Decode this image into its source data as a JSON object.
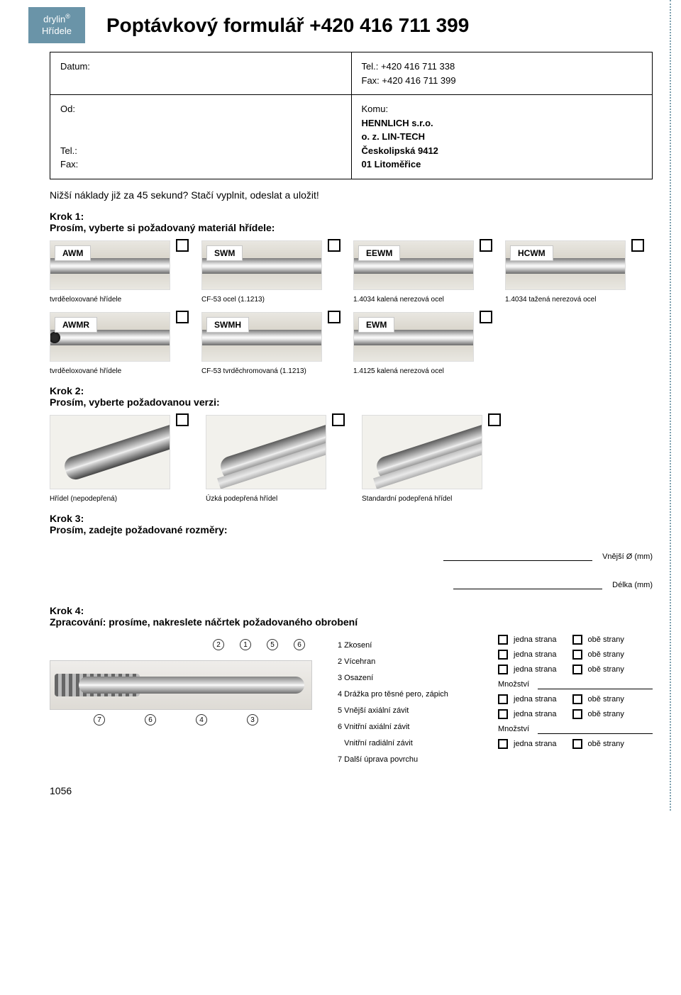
{
  "colors": {
    "brand_tab_bg": "#6a94a8",
    "brand_tab_text": "#ffffff",
    "page_bg": "#ffffff",
    "text": "#000000",
    "dotline": "#7c9fae",
    "thumb_bg_start": "#e9e7e1",
    "thumb_bg_end": "#d4d0c5"
  },
  "fonts": {
    "title_pt": 28,
    "body_pt": 13,
    "caption_pt": 10
  },
  "brand": {
    "line1": "drylin",
    "registered": "®",
    "line2": "Hřídele"
  },
  "title": "Poptávkový formulář +420 416 711 399",
  "contact": {
    "top_left_label": "Datum:",
    "top_right": {
      "tel": "Tel.: +420 416 711 338",
      "fax": "Fax: +420 416 711 399"
    },
    "bottom_left": {
      "od": "Od:",
      "tel": "Tel.:",
      "fax": "Fax:"
    },
    "bottom_right": {
      "komu": "Komu:",
      "l1": "HENNLICH s.r.o.",
      "l2": "o. z. LIN-TECH",
      "l3": "Českolipská 9412",
      "l4": "01 Litoměřice"
    }
  },
  "intro": "Nižší náklady již za 45 sekund? Stačí vyplnit, odeslat a uložit!",
  "step1": {
    "heading": "Krok 1:",
    "sub": "Prosím, vyberte si požadovaný materiál hřídele:",
    "row1": [
      {
        "code": "AWM",
        "caption": "tvrděeloxované hřídele"
      },
      {
        "code": "SWM",
        "caption": "CF-53 ocel (1.1213)"
      },
      {
        "code": "EEWM",
        "caption": "1.4034 kalená nerezová ocel"
      },
      {
        "code": "HCWM",
        "caption": "1.4034 tažená nerezová ocel"
      }
    ],
    "row2": [
      {
        "code": "AWMR",
        "caption": "tvrděeloxované hřídele",
        "hollow": true
      },
      {
        "code": "SWMH",
        "caption": "CF-53 tvrděchromovaná (1.1213)"
      },
      {
        "code": "EWM",
        "caption": "1.4125 kalená nerezová ocel"
      }
    ]
  },
  "step2": {
    "heading": "Krok 2:",
    "sub": "Prosím, vyberte požadovanou verzi:",
    "items": [
      {
        "caption": "Hřídel (nepodepřená)",
        "rail": false
      },
      {
        "caption": "Úzká podepřená hřídel",
        "rail": true
      },
      {
        "caption": "Standardní podepřená hřídel",
        "rail": true
      }
    ]
  },
  "step3": {
    "heading": "Krok 3:",
    "sub": "Prosím, zadejte požadované rozměry:",
    "dim1": "Vnější Ø (mm)",
    "dim2": "Délka (mm)"
  },
  "step4": {
    "heading": "Krok 4:",
    "sub": "Zpracování: prosíme, nakreslete náčrtek požadovaného obrobení",
    "callouts_top": [
      "2",
      "1",
      "5",
      "6"
    ],
    "callouts_bottom": [
      "7",
      "6",
      "4",
      "3"
    ],
    "legend": [
      "1 Zkosení",
      "2 Vícehran",
      "3 Osazení",
      "4 Drážka pro těsné pero, zápich",
      "5 Vnější axiální závit",
      "6 Vnitřní axiální závit",
      "   Vnitřní radiální závit",
      "7 Další úprava povrchu"
    ],
    "opt_one": "jedna strana",
    "opt_both": "obě strany",
    "qty": "Množství"
  },
  "page_number": "1056"
}
